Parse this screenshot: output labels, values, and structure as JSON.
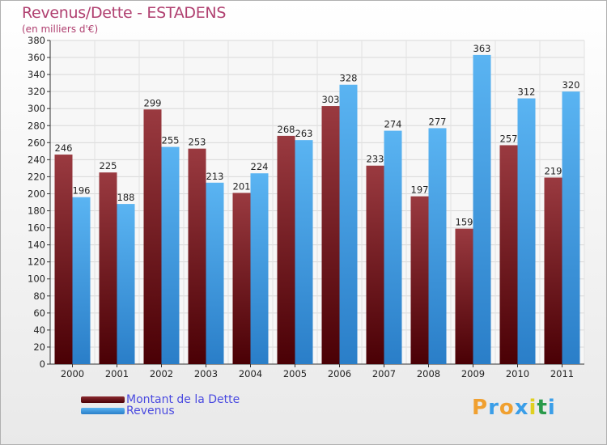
{
  "header": {
    "title": "Revenus/Dette - ESTADENS",
    "subtitle": "(en milliers d'€)"
  },
  "colors": {
    "dette": "#6b0f14",
    "revenus": "#3f9ee8",
    "title": "#b04070",
    "legend_text": "#4a4ae0"
  },
  "chart_data": {
    "type": "bar",
    "title": "Revenus/Dette - ESTADENS",
    "subtitle": "(en milliers d'€)",
    "categories": [
      "2000",
      "2001",
      "2002",
      "2003",
      "2004",
      "2005",
      "2006",
      "2007",
      "2008",
      "2009",
      "2010",
      "2011"
    ],
    "series": [
      {
        "name": "Montant de la Dette",
        "values": [
          246,
          225,
          299,
          253,
          201,
          268,
          303,
          233,
          197,
          159,
          257,
          219
        ]
      },
      {
        "name": "Revenus",
        "values": [
          196,
          188,
          255,
          213,
          224,
          263,
          328,
          274,
          277,
          363,
          312,
          320
        ]
      }
    ],
    "ylim": [
      0,
      380
    ],
    "ytick_step": 20,
    "grid": true,
    "legend": "bottom-left"
  },
  "logo": {
    "letters": [
      "P",
      "r",
      "o",
      "x",
      "i",
      "t",
      "i"
    ],
    "colors": [
      "#f0a030",
      "#3a9ee8",
      "#f0a030",
      "#3a9ee8",
      "#e0d020",
      "#2a9a4a",
      "#3a9ee8"
    ]
  }
}
